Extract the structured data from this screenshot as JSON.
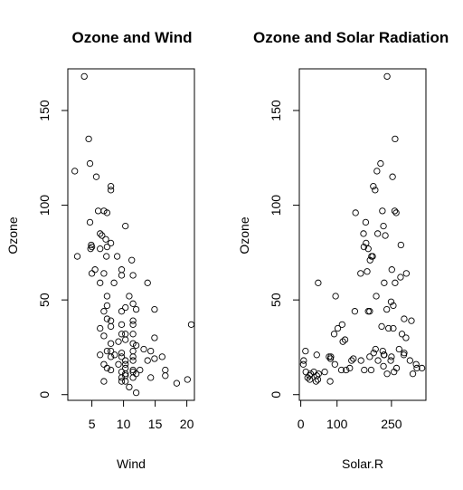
{
  "chart_data": [
    {
      "type": "scatter",
      "title": "Ozone and Wind",
      "xlabel": "Wind",
      "ylabel": "Ozone",
      "xlim": [
        1.2,
        21.2
      ],
      "ylim": [
        -3,
        172
      ],
      "xticks": [
        5,
        10,
        15,
        20
      ],
      "yticks": [
        0,
        50,
        100,
        150
      ],
      "points": [
        [
          3.8,
          168
        ],
        [
          4.5,
          135
        ],
        [
          4.7,
          122
        ],
        [
          2.3,
          118
        ],
        [
          5.7,
          115
        ],
        [
          8.0,
          110
        ],
        [
          8.0,
          108
        ],
        [
          6.0,
          97
        ],
        [
          6.9,
          97
        ],
        [
          7.4,
          96
        ],
        [
          4.7,
          91
        ],
        [
          10.3,
          89
        ],
        [
          6.3,
          85
        ],
        [
          6.6,
          84
        ],
        [
          7.2,
          82
        ],
        [
          4.9,
          79
        ],
        [
          8.0,
          80
        ],
        [
          4.8,
          77
        ],
        [
          5.0,
          78
        ],
        [
          7.4,
          78
        ],
        [
          6.3,
          77
        ],
        [
          9.0,
          73
        ],
        [
          7.3,
          73
        ],
        [
          2.7,
          73
        ],
        [
          11.3,
          71
        ],
        [
          9.7,
          66
        ],
        [
          5.0,
          64
        ],
        [
          6.9,
          64
        ],
        [
          5.5,
          66
        ],
        [
          9.7,
          63
        ],
        [
          11.5,
          63
        ],
        [
          8.5,
          59
        ],
        [
          6.3,
          59
        ],
        [
          13.8,
          59
        ],
        [
          7.4,
          52
        ],
        [
          10.9,
          52
        ],
        [
          11.5,
          48
        ],
        [
          7.4,
          47
        ],
        [
          10.3,
          46
        ],
        [
          14.9,
          45
        ],
        [
          12.0,
          45
        ],
        [
          9.7,
          44
        ],
        [
          6.9,
          44
        ],
        [
          11.5,
          39
        ],
        [
          11.5,
          37
        ],
        [
          7.4,
          40
        ],
        [
          8.0,
          39
        ],
        [
          9.7,
          37
        ],
        [
          8.0,
          36
        ],
        [
          20.7,
          37
        ],
        [
          6.3,
          35
        ],
        [
          10.3,
          32
        ],
        [
          9.7,
          32
        ],
        [
          11.5,
          32
        ],
        [
          6.9,
          31
        ],
        [
          14.9,
          30
        ],
        [
          10.3,
          29
        ],
        [
          9.2,
          28
        ],
        [
          8.0,
          27
        ],
        [
          11.5,
          27
        ],
        [
          12.0,
          26
        ],
        [
          13.2,
          24
        ],
        [
          14.3,
          23
        ],
        [
          7.4,
          23
        ],
        [
          8.0,
          23
        ],
        [
          9.7,
          22
        ],
        [
          11.5,
          23
        ],
        [
          6.3,
          21
        ],
        [
          8.6,
          21
        ],
        [
          9.7,
          20
        ],
        [
          8.0,
          20
        ],
        [
          16.1,
          20
        ],
        [
          14.9,
          19
        ],
        [
          11.5,
          18
        ],
        [
          10.3,
          18
        ],
        [
          10.3,
          16
        ],
        [
          13.8,
          18
        ],
        [
          9.2,
          16
        ],
        [
          7.4,
          14
        ],
        [
          10.3,
          14
        ],
        [
          11.5,
          13
        ],
        [
          12.6,
          13
        ],
        [
          11.5,
          12
        ],
        [
          8.0,
          13
        ],
        [
          9.7,
          12
        ],
        [
          16.6,
          13
        ],
        [
          10.3,
          11
        ],
        [
          12.0,
          11
        ],
        [
          11.5,
          9
        ],
        [
          16.6,
          10
        ],
        [
          9.7,
          9
        ],
        [
          14.3,
          9
        ],
        [
          10.3,
          7
        ],
        [
          20.1,
          8
        ],
        [
          9.7,
          7
        ],
        [
          6.9,
          7
        ],
        [
          10.9,
          4
        ],
        [
          18.4,
          6
        ],
        [
          12.0,
          1
        ],
        [
          10.3,
          10
        ],
        [
          11.5,
          20
        ],
        [
          6.9,
          16
        ]
      ]
    },
    {
      "type": "scatter",
      "title": "Ozone and Solar Radiation",
      "xlabel": "Solar.R",
      "ylabel": "Ozone",
      "xlim": [
        -4,
        345
      ],
      "ylim": [
        -3,
        172
      ],
      "xticks": [
        0,
        100,
        250
      ],
      "xticklabels": [
        "0",
        "100",
        "250"
      ],
      "yticks": [
        0,
        50,
        100,
        150
      ],
      "points": [
        [
          238,
          168
        ],
        [
          260,
          135
        ],
        [
          220,
          122
        ],
        [
          210,
          118
        ],
        [
          253,
          115
        ],
        [
          200,
          110
        ],
        [
          205,
          108
        ],
        [
          225,
          97
        ],
        [
          259,
          97
        ],
        [
          263,
          96
        ],
        [
          151,
          96
        ],
        [
          179,
          91
        ],
        [
          228,
          89
        ],
        [
          173,
          85
        ],
        [
          212,
          85
        ],
        [
          233,
          84
        ],
        [
          174,
          78
        ],
        [
          186,
          77
        ],
        [
          276,
          79
        ],
        [
          180,
          80
        ],
        [
          195,
          73
        ],
        [
          198,
          73
        ],
        [
          191,
          71
        ],
        [
          251,
          66
        ],
        [
          291,
          64
        ],
        [
          165,
          64
        ],
        [
          183,
          65
        ],
        [
          275,
          62
        ],
        [
          230,
          59
        ],
        [
          260,
          59
        ],
        [
          48,
          59
        ],
        [
          208,
          52
        ],
        [
          249,
          49
        ],
        [
          96,
          52
        ],
        [
          255,
          47
        ],
        [
          237,
          45
        ],
        [
          186,
          44
        ],
        [
          190,
          44
        ],
        [
          114,
          37
        ],
        [
          285,
          40
        ],
        [
          255,
          35
        ],
        [
          223,
          36
        ],
        [
          149,
          44
        ],
        [
          102,
          35
        ],
        [
          305,
          39
        ],
        [
          92,
          32
        ],
        [
          279,
          32
        ],
        [
          122,
          29
        ],
        [
          290,
          30
        ],
        [
          242,
          35
        ],
        [
          116,
          28
        ],
        [
          206,
          24
        ],
        [
          271,
          24
        ],
        [
          201,
          22
        ],
        [
          166,
          18
        ],
        [
          248,
          18
        ],
        [
          301,
          18
        ],
        [
          285,
          22
        ],
        [
          226,
          23
        ],
        [
          230,
          21
        ],
        [
          190,
          20
        ],
        [
          229,
          21
        ],
        [
          82,
          19
        ],
        [
          250,
          20
        ],
        [
          145,
          19
        ],
        [
          213,
          18
        ],
        [
          7,
          16
        ],
        [
          125,
          13
        ],
        [
          140,
          18
        ],
        [
          175,
          13
        ],
        [
          228,
          15
        ],
        [
          318,
          16
        ],
        [
          112,
          13
        ],
        [
          66,
          12
        ],
        [
          194,
          13
        ],
        [
          49,
          11
        ],
        [
          238,
          11
        ],
        [
          19,
          9
        ],
        [
          24,
          10
        ],
        [
          27,
          11
        ],
        [
          36,
          12
        ],
        [
          14,
          12
        ],
        [
          257,
          12
        ],
        [
          320,
          14
        ],
        [
          135,
          14
        ],
        [
          44,
          10
        ],
        [
          264,
          14
        ],
        [
          81,
          7
        ],
        [
          78,
          20
        ],
        [
          42,
          7
        ],
        [
          25,
          8
        ],
        [
          94,
          16
        ],
        [
          13,
          23
        ],
        [
          8,
          18
        ],
        [
          44,
          21
        ],
        [
          334,
          14
        ],
        [
          284,
          21
        ],
        [
          309,
          11
        ],
        [
          83,
          20
        ],
        [
          47,
          8
        ]
      ]
    }
  ]
}
